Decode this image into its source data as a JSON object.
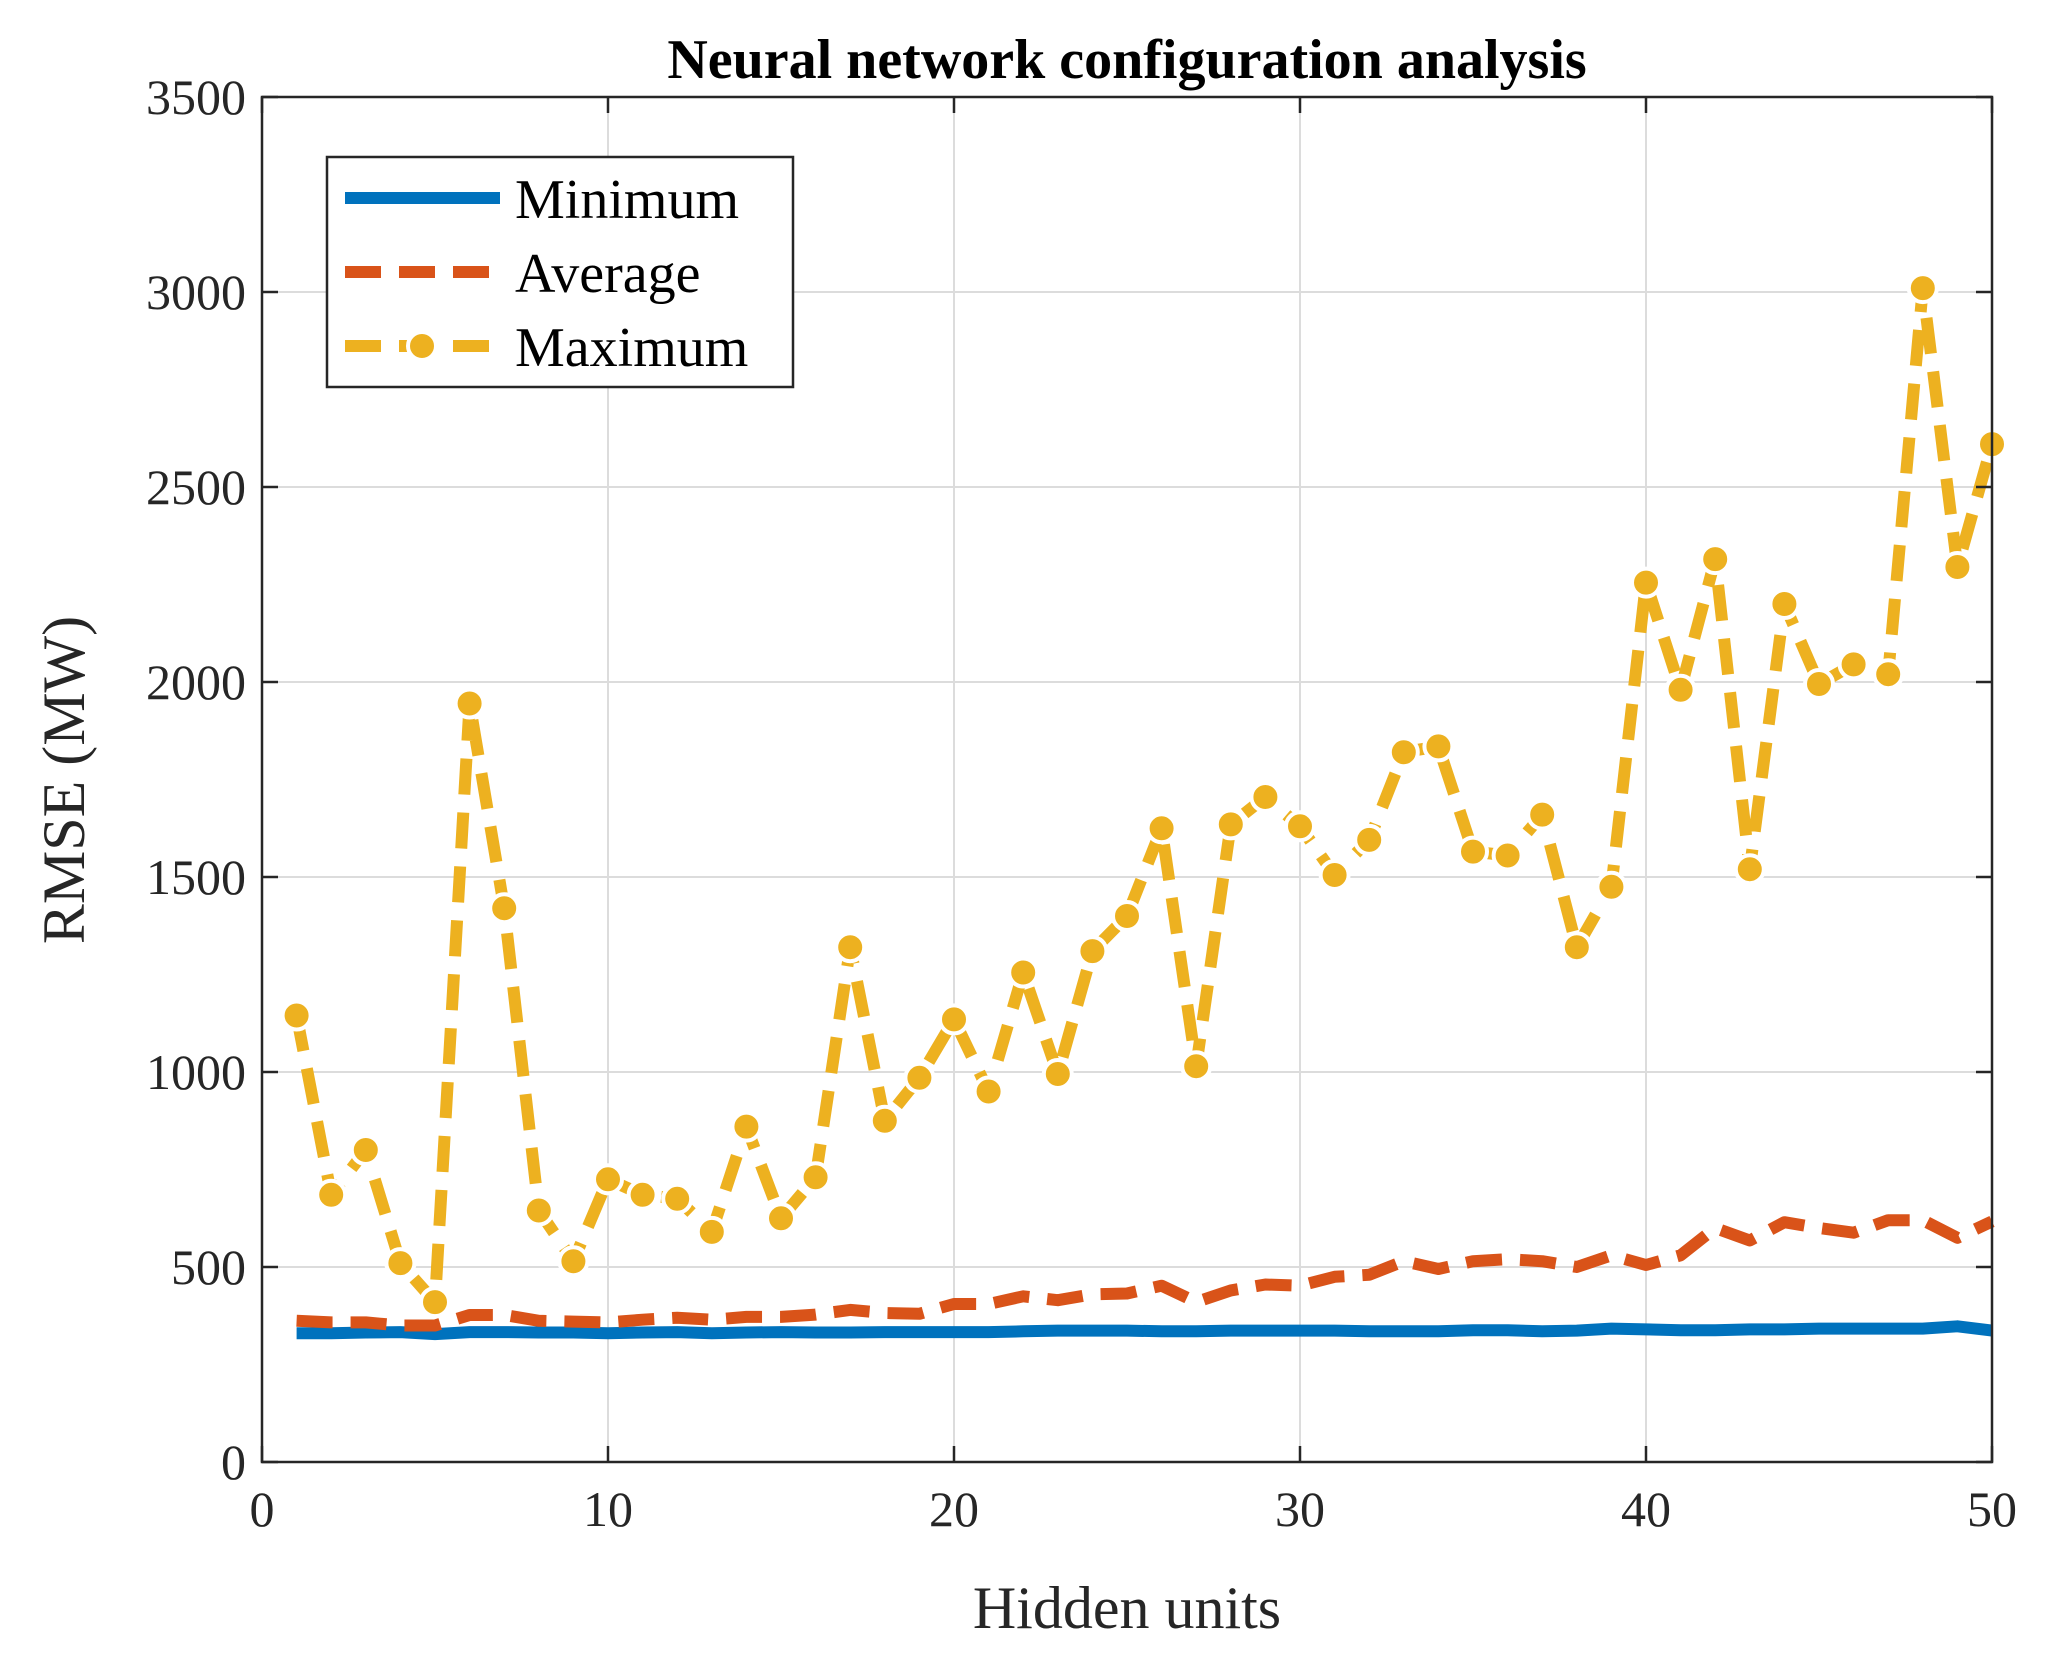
{
  "chart_data": {
    "type": "line",
    "title": "Neural network configuration analysis",
    "xlabel": "Hidden units",
    "ylabel": "RMSE (MW)",
    "xlim": [
      0,
      50
    ],
    "ylim": [
      0,
      3500
    ],
    "xticks": [
      0,
      10,
      20,
      30,
      40,
      50
    ],
    "yticks": [
      0,
      500,
      1000,
      1500,
      2000,
      2500,
      3000,
      3500
    ],
    "grid": true,
    "legend_position": "top-left",
    "x": [
      1,
      2,
      3,
      4,
      5,
      6,
      7,
      8,
      9,
      10,
      11,
      12,
      13,
      14,
      15,
      16,
      17,
      18,
      19,
      20,
      21,
      22,
      23,
      24,
      25,
      26,
      27,
      28,
      29,
      30,
      31,
      32,
      33,
      34,
      35,
      36,
      37,
      38,
      39,
      40,
      41,
      42,
      43,
      44,
      45,
      46,
      47,
      48,
      49,
      50
    ],
    "series": [
      {
        "name": "Minimum",
        "color": "#0072BD",
        "style": "solid",
        "marker": "none",
        "values": [
          330,
          330,
          332,
          333,
          328,
          333,
          333,
          332,
          332,
          330,
          332,
          333,
          330,
          332,
          333,
          332,
          332,
          333,
          333,
          333,
          333,
          335,
          337,
          337,
          337,
          335,
          335,
          337,
          337,
          337,
          337,
          335,
          335,
          335,
          338,
          338,
          335,
          337,
          342,
          340,
          338,
          338,
          340,
          340,
          342,
          342,
          342,
          342,
          348,
          337
        ]
      },
      {
        "name": "Average",
        "color": "#D95319",
        "style": "dashed",
        "marker": "none",
        "values": [
          362,
          358,
          358,
          350,
          350,
          377,
          377,
          362,
          360,
          358,
          365,
          370,
          365,
          372,
          372,
          378,
          390,
          382,
          380,
          405,
          405,
          425,
          415,
          430,
          432,
          452,
          410,
          440,
          455,
          452,
          475,
          480,
          515,
          495,
          515,
          520,
          515,
          500,
          530,
          505,
          530,
          600,
          568,
          615,
          600,
          588,
          620,
          620,
          575,
          617
        ]
      },
      {
        "name": "Maximum",
        "color": "#EDB120",
        "style": "dashed",
        "marker": "circle",
        "values": [
          1145,
          685,
          800,
          510,
          410,
          1945,
          1420,
          645,
          515,
          725,
          685,
          675,
          590,
          860,
          625,
          730,
          1320,
          875,
          985,
          1135,
          950,
          1255,
          995,
          1310,
          1400,
          1625,
          1015,
          1635,
          1705,
          1630,
          1505,
          1595,
          1820,
          1835,
          1565,
          1555,
          1660,
          1320,
          1475,
          2255,
          1980,
          2315,
          1520,
          2200,
          1995,
          2045,
          2020,
          3010,
          2295,
          2610
        ]
      }
    ]
  }
}
